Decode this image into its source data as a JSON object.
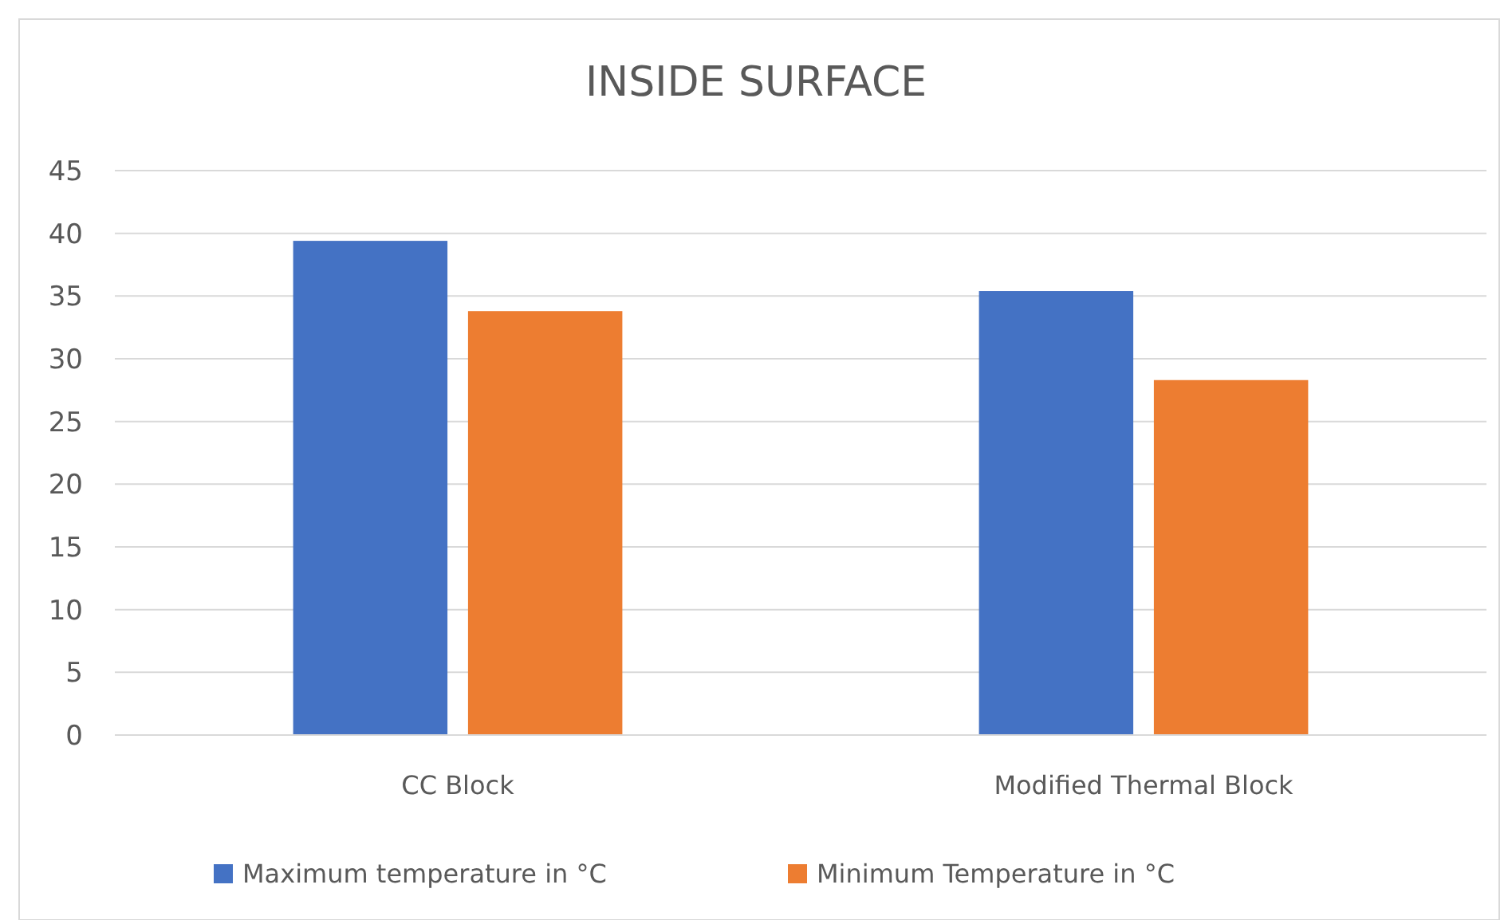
{
  "chart_data": {
    "type": "bar",
    "title": "INSIDE SURFACE",
    "categories": [
      "CC Block",
      "Modified Thermal Block"
    ],
    "series": [
      {
        "name": "Maximum temperature in °C",
        "color": "#4472c4",
        "values": [
          39.4,
          35.4
        ]
      },
      {
        "name": "Minimum Temperature in °C",
        "color": "#ed7d31",
        "values": [
          33.8,
          28.3
        ]
      }
    ],
    "ylim": [
      0,
      45
    ],
    "yticks": [
      0,
      5,
      10,
      15,
      20,
      25,
      30,
      35,
      40,
      45
    ],
    "grid": "y",
    "legend": "bottom"
  }
}
